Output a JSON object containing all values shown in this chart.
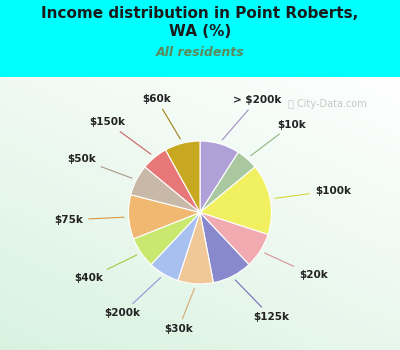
{
  "title": "Income distribution in Point Roberts,\nWA (%)",
  "subtitle": "All residents",
  "title_color": "#1a1a1a",
  "subtitle_color": "#5a8a5a",
  "bg_color": "#00ffff",
  "chart_bg_top": "#f0faf8",
  "chart_bg_bottom": "#c8ecd8",
  "labels": [
    "> $200k",
    "$10k",
    "$100k",
    "$20k",
    "$125k",
    "$30k",
    "$200k",
    "$40k",
    "$75k",
    "$50k",
    "$150k",
    "$60k"
  ],
  "values": [
    9,
    5,
    16,
    8,
    9,
    8,
    7,
    7,
    10,
    7,
    6,
    8
  ],
  "colors": [
    "#b0a0d8",
    "#aac8a0",
    "#f0f060",
    "#f0aab0",
    "#8888cc",
    "#f0c898",
    "#a8c0f0",
    "#c8e870",
    "#f0b870",
    "#c8b8a8",
    "#e87878",
    "#c8a820"
  ],
  "label_fontsize": 7.5,
  "start_angle": 90,
  "counterclock": false,
  "watermark": "ⓘ City-Data.com",
  "watermark_color": "#aaaaaa",
  "line_colors": [
    "#a090c0",
    "#90b880",
    "#d8d840",
    "#d89098",
    "#7070b8",
    "#d8a870",
    "#8898d8",
    "#a8c840",
    "#d89840",
    "#a89888",
    "#c86060",
    "#a08010"
  ]
}
